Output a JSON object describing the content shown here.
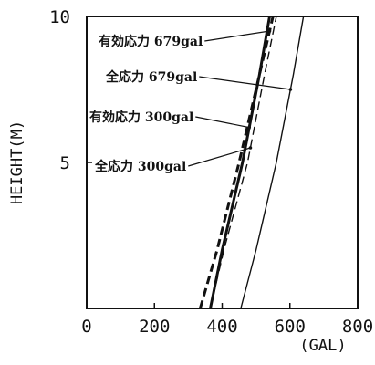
{
  "chart_data": {
    "type": "line",
    "title": "",
    "xlabel": "(GAL)",
    "ylabel": "HEIGHT(M)",
    "xlim": [
      0,
      800
    ],
    "ylim": [
      0,
      10
    ],
    "xticks": [
      "0",
      "200",
      "400",
      "600",
      "800"
    ],
    "yticks": [
      "5",
      "10"
    ],
    "grid": false,
    "legend": "none",
    "series": [
      {
        "name": "有効応力 679gal",
        "style": "dashed",
        "width": "thick",
        "x": [
          335,
          385,
          450,
          510,
          550
        ],
        "y": [
          0,
          2,
          5,
          8,
          10
        ]
      },
      {
        "name": "全応力 679gal",
        "style": "solid",
        "width": "thin",
        "x": [
          455,
          500,
          560,
          610,
          640
        ],
        "y": [
          0,
          2,
          5,
          8,
          10
        ]
      },
      {
        "name": "有効応力 300gal",
        "style": "solid",
        "width": "thick",
        "x": [
          365,
          400,
          460,
          510,
          540
        ],
        "y": [
          0,
          2,
          5,
          8,
          10
        ]
      },
      {
        "name": "全応力 300gal",
        "style": "dashed",
        "width": "thin",
        "x": [
          365,
          405,
          475,
          525,
          560
        ],
        "y": [
          0,
          2,
          5,
          8,
          10
        ]
      }
    ],
    "annotations": [
      {
        "text": "有効応力 679gal",
        "target_series": 0,
        "target_y": 9.5
      },
      {
        "text": "全応力 679gal",
        "target_series": 1,
        "target_y": 7.5
      },
      {
        "text": "有効応力 300gal",
        "target_series": 2,
        "target_y": 6.2
      },
      {
        "text": "全応力 300gal",
        "target_series": 3,
        "target_y": 5.5
      }
    ]
  }
}
